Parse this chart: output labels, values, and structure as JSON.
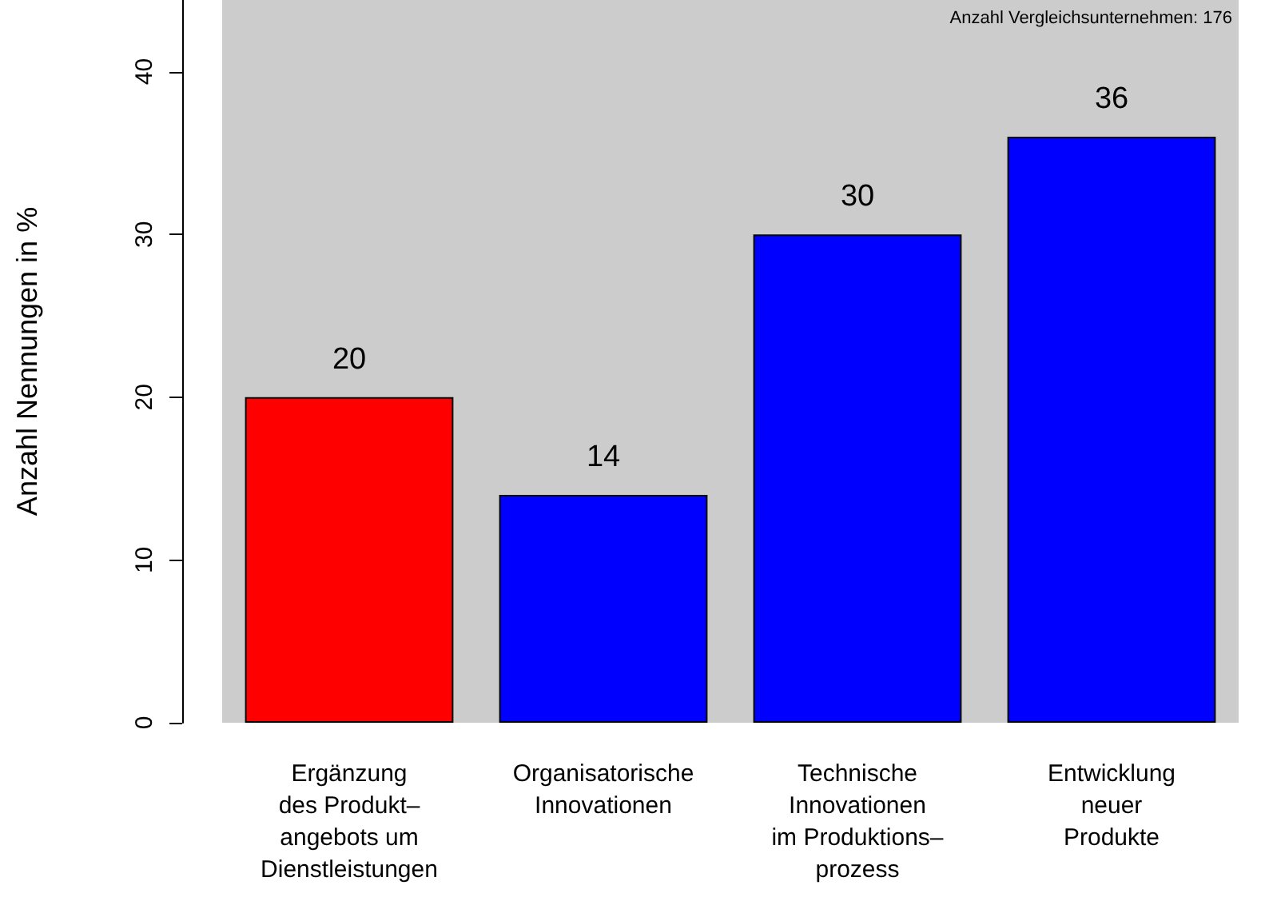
{
  "chart_data": {
    "type": "bar",
    "ylabel": "Anzahl Nennungen in %",
    "annotations": [
      "Anzahl Vergleichsunternehmen: 176"
    ],
    "categories": [
      "Ergänzung\ndes Produkt–\nangebots um\nDienstleistungen",
      "Organisatorische\nInnovationen",
      "Technische\nInnovationen\nim Produktions–\nprozess",
      "Entwicklung\nneuer\nProdukte"
    ],
    "values": [
      20,
      14,
      30,
      36
    ],
    "colors": [
      "#ff0000",
      "#0000ff",
      "#0000ff",
      "#0000ff"
    ],
    "ylim": [
      0,
      44.4
    ],
    "yticks": [
      0,
      10,
      20,
      30,
      40
    ],
    "data_labels": true,
    "grid": false
  }
}
